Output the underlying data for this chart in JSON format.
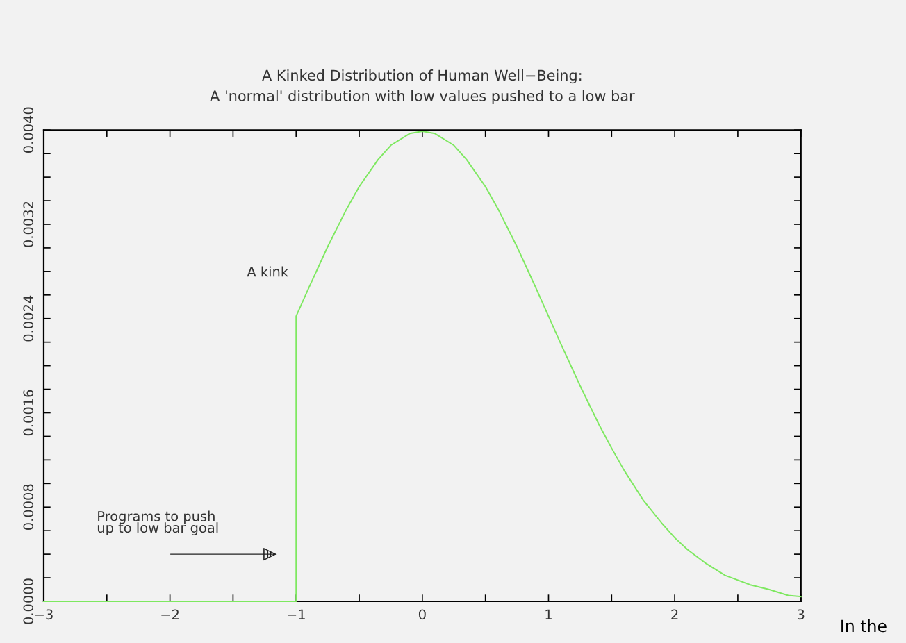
{
  "chart_data": {
    "type": "line",
    "title": "A Kinked Distribution of Human Well−Being:\nA 'normal' distribution with low values pushed to a low bar",
    "series": [
      {
        "color": "#7ee860",
        "x": [
          -3,
          -2,
          -1,
          -1,
          -0.9,
          -0.75,
          -0.6,
          -0.5,
          -0.35,
          -0.25,
          -0.1,
          0,
          0.1,
          0.25,
          0.35,
          0.5,
          0.6,
          0.75,
          0.9,
          1,
          1.1,
          1.25,
          1.4,
          1.5,
          1.6,
          1.75,
          1.9,
          2,
          2.1,
          2.25,
          2.4,
          2.5,
          2.6,
          2.75,
          2.9,
          3
        ],
        "values": [
          0,
          0,
          0,
          0.00242,
          0.00266,
          0.00301,
          0.00333,
          0.00352,
          0.00375,
          0.00387,
          0.00397,
          0.00399,
          0.00397,
          0.00387,
          0.00375,
          0.00352,
          0.00333,
          0.00301,
          0.00266,
          0.00242,
          0.00218,
          0.00183,
          0.0015,
          0.0013,
          0.00111,
          0.00086,
          0.00066,
          0.00054,
          0.00044,
          0.00032,
          0.00022,
          0.00018,
          0.00014,
          0.0001,
          5e-05,
          4e-05
        ]
      }
    ],
    "xlim": [
      -3,
      3
    ],
    "xticks": [
      -3,
      {
        "value": -2.5,
        "label": null
      },
      -2,
      {
        "value": -1.5,
        "label": null
      },
      -1,
      {
        "value": -0.5,
        "label": null
      },
      0,
      {
        "value": 0.5,
        "label": null
      },
      1,
      {
        "value": 1.5,
        "label": null
      },
      2,
      {
        "value": 2.5,
        "label": null
      },
      3
    ],
    "ylim": [
      0,
      0.004
    ],
    "yticks": [
      {
        "value": 0,
        "label": "0.0000"
      },
      {
        "value": 0.0002,
        "label": null
      },
      {
        "value": 0.0004,
        "label": null
      },
      {
        "value": 0.0006,
        "label": null
      },
      {
        "value": 0.0008,
        "label": "0.0008"
      },
      {
        "value": 0.001,
        "label": null
      },
      {
        "value": 0.0012,
        "label": null
      },
      {
        "value": 0.0014,
        "label": null
      },
      {
        "value": 0.0016,
        "label": "0.0016"
      },
      {
        "value": 0.0018,
        "label": null
      },
      {
        "value": 0.002,
        "label": null
      },
      {
        "value": 0.0022,
        "label": null
      },
      {
        "value": 0.0024,
        "label": "0.0024"
      },
      {
        "value": 0.0026,
        "label": null
      },
      {
        "value": 0.0028,
        "label": null
      },
      {
        "value": 0.003,
        "label": null
      },
      {
        "value": 0.0032,
        "label": "0.0032"
      },
      {
        "value": 0.0034,
        "label": null
      },
      {
        "value": 0.0036,
        "label": null
      },
      {
        "value": 0.0038,
        "label": null
      },
      {
        "value": 0.004,
        "label": "0.0040"
      }
    ],
    "grid": false,
    "annotations": [
      {
        "text": "A kink",
        "x": -1,
        "y": 0.00242
      },
      "Programs to push\nup to low bar goal",
      "In the"
    ]
  }
}
